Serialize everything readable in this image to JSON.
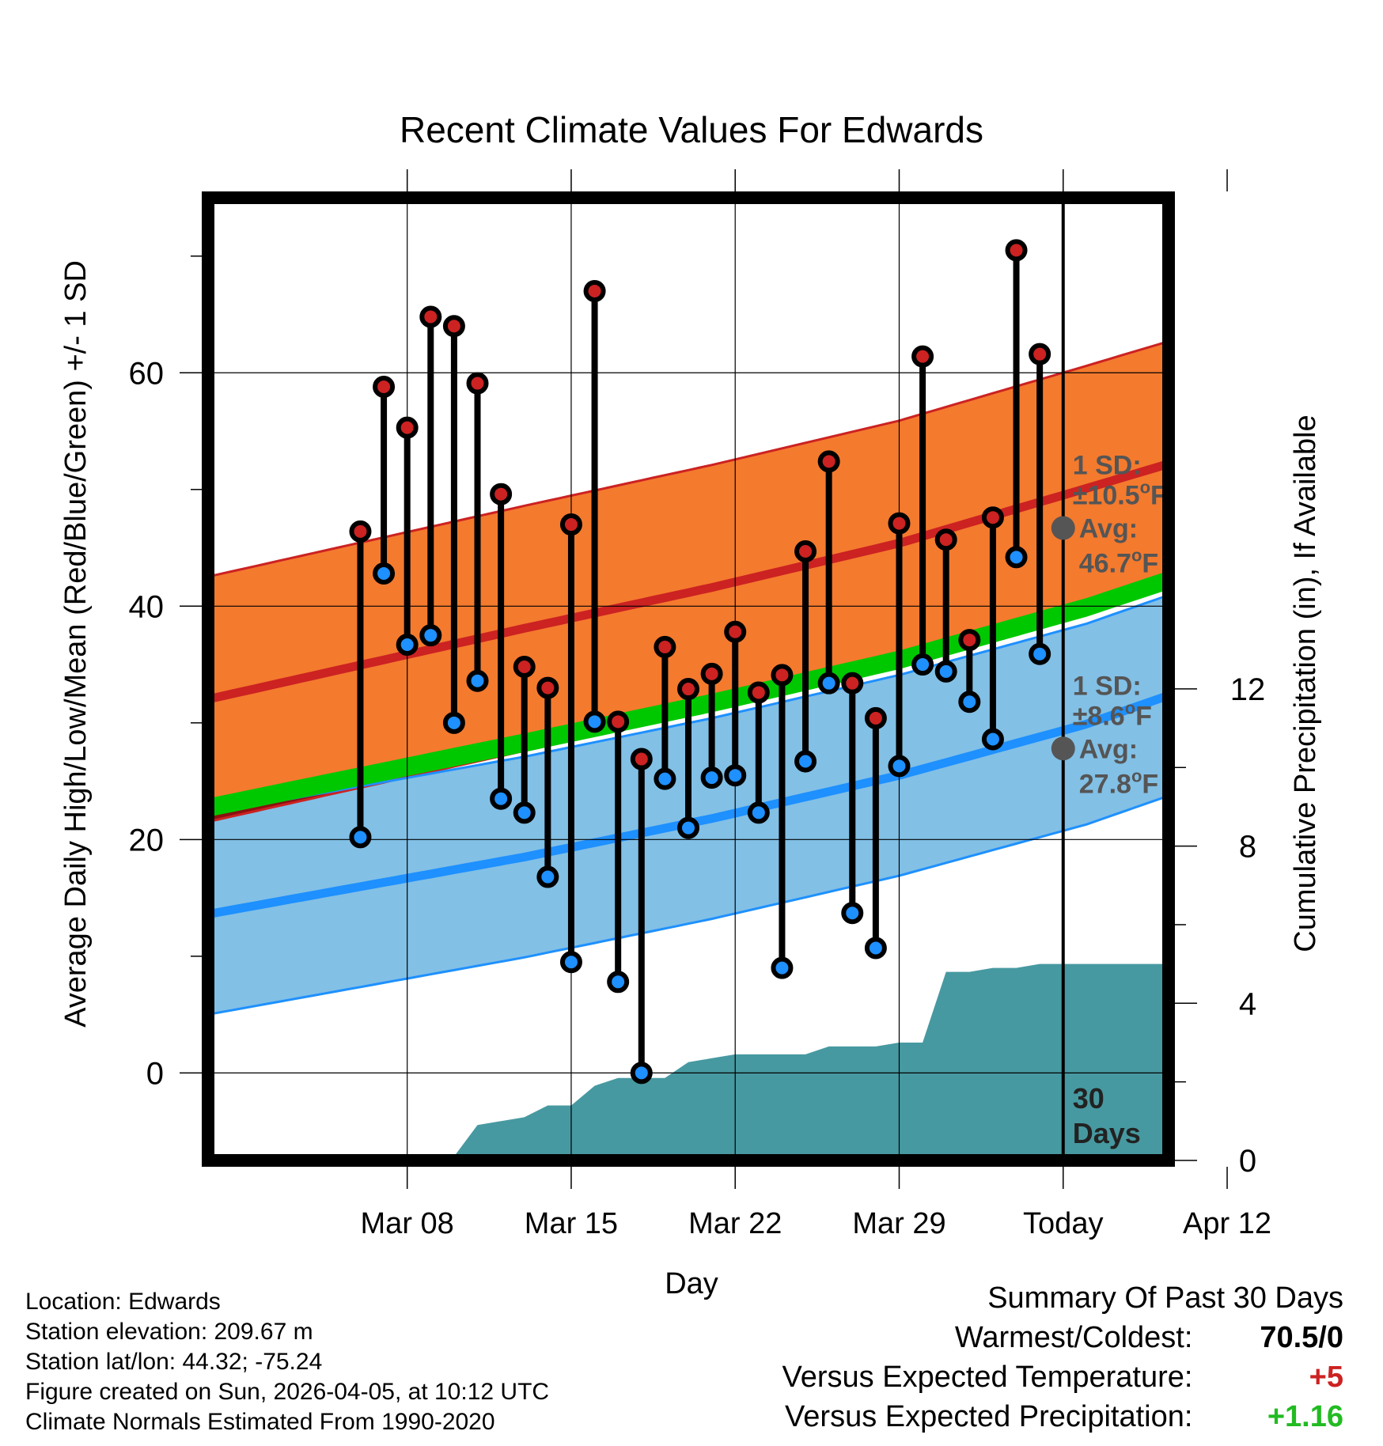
{
  "chart_data": {
    "type": "line",
    "title": "Recent Climate Values For Edwards",
    "xlabel": "Day",
    "ylabel": "Average Daily High/Low/Mean (Red/Blue/Green) +/- 1 SD",
    "y2label": "Cumulative Precipitation (in), If Available",
    "x_domain_days": [
      -1.5,
      39.5
    ],
    "ylim": [
      -7.5,
      75
    ],
    "y2lim": [
      0,
      24.5
    ],
    "y_ticks": [
      0,
      20,
      40,
      60
    ],
    "y2_ticks": [
      0,
      4,
      8,
      12
    ],
    "x_ticks": [
      {
        "day": 7,
        "label": "Mar 08"
      },
      {
        "day": 14,
        "label": "Mar 15"
      },
      {
        "day": 21,
        "label": "Mar 22"
      },
      {
        "day": 28,
        "label": "Mar 29"
      },
      {
        "day": 35,
        "label": "Today"
      },
      {
        "day": 42,
        "label": "Apr 12"
      }
    ],
    "days": [
      5,
      6,
      7,
      8,
      9,
      10,
      11,
      12,
      13,
      14,
      15,
      16,
      17,
      18,
      19,
      20,
      21,
      22,
      23,
      24,
      25,
      26,
      27,
      28,
      29,
      30,
      31,
      32,
      33,
      34
    ],
    "highs": [
      46.4,
      58.8,
      55.3,
      64.8,
      64.0,
      59.1,
      49.6,
      34.8,
      33.0,
      47.0,
      67.0,
      30.1,
      26.9,
      36.5,
      32.9,
      34.2,
      37.8,
      32.6,
      34.1,
      44.7,
      52.4,
      33.4,
      30.4,
      47.1,
      61.4,
      45.7,
      37.1,
      47.6,
      70.5,
      61.6
    ],
    "lows": [
      20.2,
      42.8,
      36.7,
      37.5,
      30.0,
      33.6,
      23.5,
      22.3,
      16.8,
      9.5,
      30.1,
      7.8,
      0.0,
      25.2,
      21.0,
      25.3,
      25.5,
      22.3,
      9.0,
      26.7,
      33.4,
      13.7,
      10.7,
      26.3,
      35.0,
      34.4,
      31.8,
      28.6,
      44.2,
      35.9
    ],
    "normal_high_curve": {
      "days": [
        4,
        12,
        20,
        28,
        36,
        39
      ],
      "values": [
        34.5,
        38.1,
        41.6,
        45.4,
        50.1,
        51.9
      ]
    },
    "normal_high_sd": 10.5,
    "normal_low_curve": {
      "days": [
        4,
        12,
        20,
        28,
        36,
        39
      ],
      "values": [
        15.6,
        18.5,
        21.8,
        25.5,
        29.9,
        32.0
      ]
    },
    "normal_low_sd": 8.6,
    "normal_mean_curve": {
      "days": [
        4,
        12,
        20,
        28,
        36,
        39
      ],
      "values": [
        25.0,
        28.3,
        31.7,
        35.4,
        39.9,
        41.9
      ]
    },
    "precip_cumulative": {
      "days": [
        4,
        6,
        7,
        8,
        9,
        10,
        11,
        12,
        13,
        14,
        15,
        16,
        17,
        18,
        19,
        20,
        21,
        22,
        23,
        24,
        25,
        26,
        27,
        28,
        29,
        30,
        31,
        32,
        33,
        34,
        35,
        39
      ],
      "values": [
        0,
        0,
        0.1,
        0.1,
        0.1,
        0.9,
        1.0,
        1.1,
        1.4,
        1.4,
        1.9,
        2.1,
        2.1,
        2.1,
        2.5,
        2.6,
        2.7,
        2.7,
        2.7,
        2.7,
        2.9,
        2.9,
        2.9,
        3.0,
        3.0,
        4.8,
        4.8,
        4.9,
        4.9,
        5.0,
        5.0,
        5.0
      ]
    },
    "today_day": 35,
    "annotation_high": {
      "line1": "1 SD:",
      "line2": "±10.5",
      "unit": "oF",
      "line3": "Avg:",
      "line4": "46.7",
      "avg_value": 46.7
    },
    "annotation_low": {
      "line1": "1 SD:",
      "line2": "±8.6",
      "unit": "oF",
      "line3": "Avg:",
      "line4": "27.8",
      "avg_value": 27.8
    },
    "days_annotation": {
      "line1": "30",
      "line2": "Days"
    },
    "colors": {
      "high_band": "#f47a2e",
      "high_line": "#cc2222",
      "low_band": "#82c0e6",
      "low_line": "#1e90ff",
      "mean_band": "#00c800",
      "overlap": "#8b1010",
      "precip": "#4799a1",
      "marker_high": "#cc2222",
      "marker_low": "#1e90ff",
      "annot": "#555555"
    }
  },
  "info": {
    "location": "Location: Edwards",
    "elevation": "Station elevation: 209.67 m",
    "latlon": "Station lat/lon: 44.32; -75.24",
    "created": "Figure created on Sun, 2026-04-05, at 10:12 UTC",
    "normals": "Climate Normals Estimated From 1990-2020"
  },
  "summary": {
    "title": "Summary Of Past 30 Days",
    "warmest_label": "Warmest/Coldest:",
    "warmest_value": "70.5/0",
    "temp_label": "Versus Expected Temperature:",
    "temp_value": "+5",
    "precip_label": "Versus Expected Precipitation:",
    "precip_value": "+1.16",
    "temp_color": "#cc2222",
    "precip_color": "#22bb22"
  }
}
